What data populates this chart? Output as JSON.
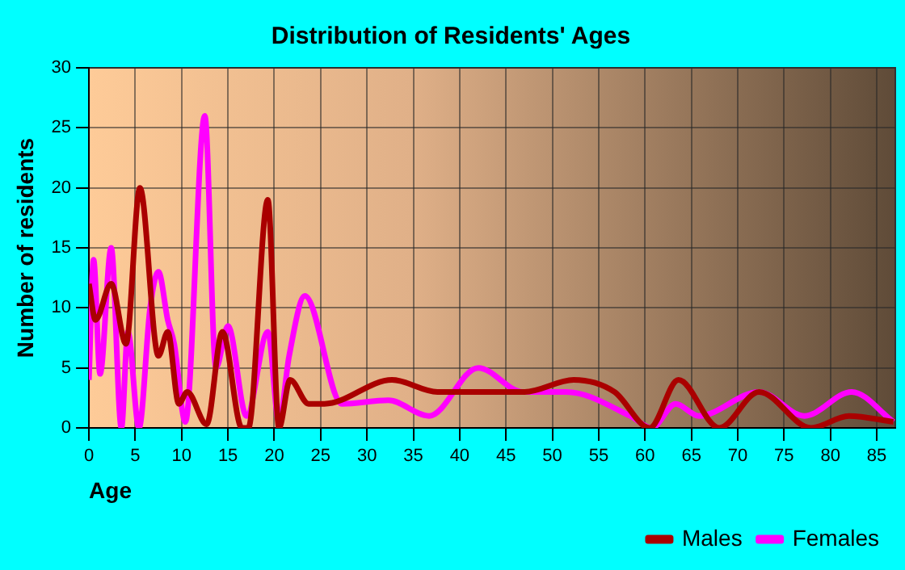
{
  "chart_data": {
    "type": "line",
    "title": "Distribution of Residents' Ages",
    "xlabel": "Age",
    "ylabel": "Number of residents",
    "xlim": [
      0,
      87
    ],
    "xticks": [
      0,
      5,
      10,
      15,
      20,
      25,
      30,
      35,
      40,
      45,
      50,
      55,
      60,
      65,
      70,
      75,
      80,
      85
    ],
    "ylim": [
      0,
      30
    ],
    "yticks": [
      0,
      5,
      10,
      15,
      20,
      25,
      30
    ],
    "grid": true,
    "legend": "bottom right",
    "marker": "none",
    "line_style": "solid",
    "series": [
      {
        "name": "Males",
        "color": "#aa0000",
        "x": [
          0,
          0.7,
          2.4,
          4,
          5.5,
          7.5,
          8.5,
          9.7,
          10.6,
          12.7,
          14.4,
          16.5,
          17.2,
          19.3,
          20.5,
          21.7,
          23.7,
          25.4,
          32.7,
          37.6,
          42.8,
          47,
          52.3,
          56.7,
          60.5,
          63.6,
          68,
          72.3,
          77.9,
          82,
          86.8
        ],
        "values": [
          12,
          9,
          12,
          7,
          20,
          6,
          8,
          2,
          3,
          0.3,
          8,
          0,
          0,
          19,
          0,
          4,
          2,
          2,
          4,
          3,
          3,
          3,
          4,
          3,
          0,
          4,
          0,
          3,
          0,
          1,
          0.5
        ]
      },
      {
        "name": "Females",
        "color": "#ff00ff",
        "x": [
          0,
          0.5,
          1.2,
          2.4,
          3.5,
          4.2,
          5.4,
          6.6,
          7.5,
          8.5,
          9.2,
          10.4,
          12.5,
          13.7,
          15,
          17,
          19.3,
          20.5,
          21.6,
          23.3,
          27.3,
          32.3,
          36.7,
          42,
          46.8,
          51.5,
          58.4,
          60.7,
          63.3,
          65.8,
          72.3,
          77.2,
          82.3,
          86.8
        ],
        "values": [
          4,
          14,
          4.5,
          15,
          0,
          8,
          0,
          10,
          13,
          9,
          7,
          0.5,
          26,
          5,
          8.5,
          1,
          8,
          0.5,
          6,
          11,
          2,
          2.3,
          1,
          5,
          3,
          3,
          1,
          0,
          2,
          1,
          3,
          1,
          3,
          0.5
        ]
      }
    ]
  }
}
